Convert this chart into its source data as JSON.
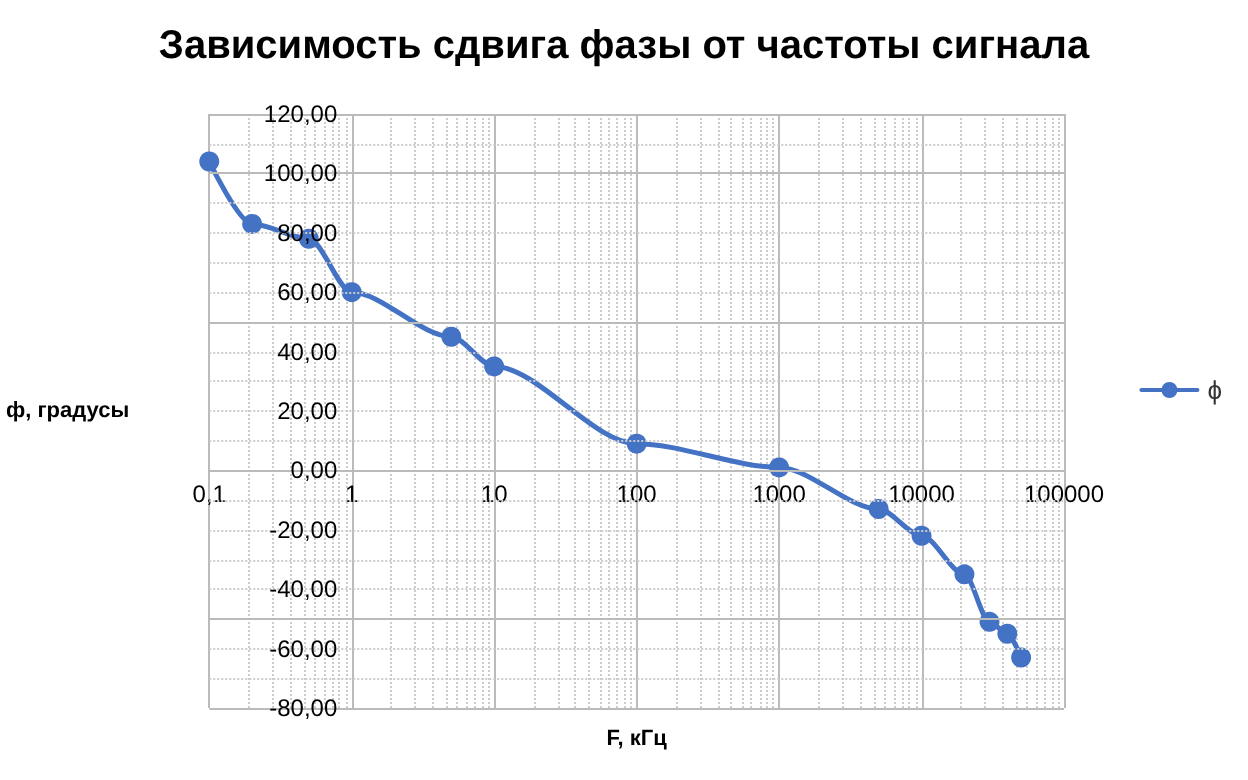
{
  "chart_data": {
    "type": "line",
    "title": "Зависимость сдвига фазы от частоты сигнала",
    "xlabel": "F, кГц",
    "ylabel": "ф, градусы",
    "x": [
      0.1,
      0.2,
      0.5,
      1,
      5,
      10,
      100,
      1000,
      5000,
      10000,
      20000,
      30000,
      40000,
      50000
    ],
    "series": [
      {
        "name": "ϕ",
        "color": "#4472c4",
        "values": [
          104,
          83,
          78,
          60,
          45,
          35,
          9,
          1,
          -13,
          -22,
          -35,
          -51,
          -55,
          -63
        ]
      }
    ],
    "log": "x",
    "xlim": [
      0.1,
      100000
    ],
    "xticks": [
      {
        "value": 0.1,
        "label": "0,1"
      },
      1,
      10,
      100,
      1000,
      10000,
      100000
    ],
    "ylim": [
      -80,
      120
    ],
    "yticks": [
      {
        "value": -80,
        "label": "-80,00"
      },
      {
        "value": -60,
        "label": "-60,00"
      },
      {
        "value": -40,
        "label": "-40,00"
      },
      {
        "value": -20,
        "label": "-20,00"
      },
      {
        "value": 0,
        "label": "0,00"
      },
      {
        "value": 20,
        "label": "20,00"
      },
      {
        "value": 40,
        "label": "40,00"
      },
      {
        "value": 60,
        "label": "60,00"
      },
      {
        "value": 80,
        "label": "80,00"
      },
      {
        "value": 100,
        "label": "100,00"
      },
      {
        "value": 120,
        "label": "120,00"
      }
    ],
    "grid": true,
    "legend": "right",
    "marker": "circle",
    "line_style": "solid"
  }
}
